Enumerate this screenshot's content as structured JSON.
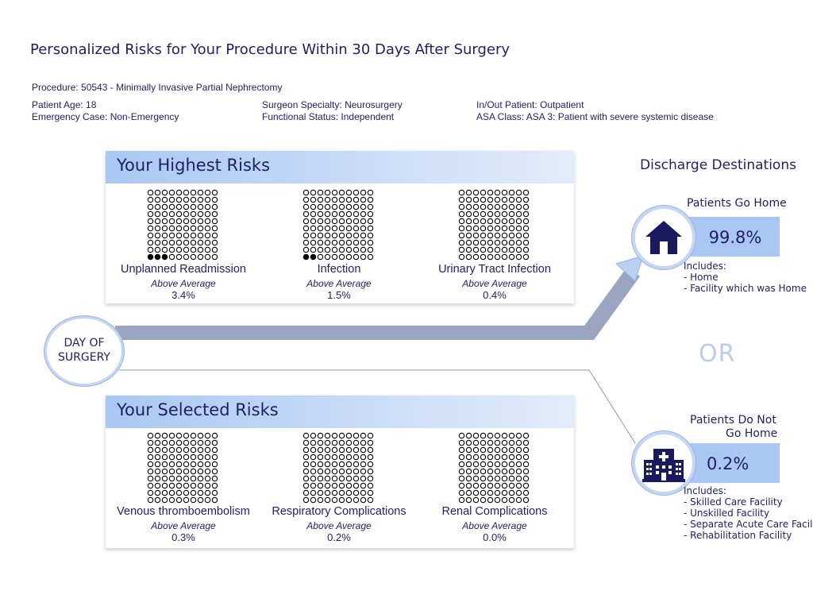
{
  "title": "Personalized Risks for Your Procedure Within 30 Days After Surgery",
  "procedure": "Procedure: 50543 - Minimally Invasive Partial Nephrectomy",
  "patient": {
    "age": "Patient Age: 18",
    "emergency": "Emergency Case: Non-Emergency",
    "specialty": "Surgeon Specialty: Neurosurgery",
    "functional": "Functional Status: Independent",
    "inout": "In/Out Patient: Outpatient",
    "asa": "ASA Class: ASA 3: Patient with severe systemic disease"
  },
  "highest_risks": {
    "heading": "Your Highest Risks",
    "items": [
      {
        "label": "Unplanned Readmission",
        "category": "Above Average",
        "value": "3.4%",
        "filled": 3
      },
      {
        "label": "Infection",
        "category": "Above Average",
        "value": "1.5%",
        "filled": 2
      },
      {
        "label": "Urinary Tract Infection",
        "category": "Above Average",
        "value": "0.4%",
        "filled": 0
      }
    ]
  },
  "selected_risks": {
    "heading": "Your Selected Risks",
    "items": [
      {
        "label": "Venous thromboembolism",
        "category": "Above Average",
        "value": "0.3%",
        "filled": 0
      },
      {
        "label": "Respiratory Complications",
        "category": "Above Average",
        "value": "0.2%",
        "filled": 0
      },
      {
        "label": "Renal Complications",
        "category": "Above Average",
        "value": "0.0%",
        "filled": 0
      }
    ]
  },
  "day_of_surgery": {
    "line1": "DAY OF",
    "line2": "SURGERY"
  },
  "discharge": {
    "heading": "Discharge Destinations",
    "or_label": "OR",
    "home": {
      "title": "Patients Go Home",
      "percent": "99.8%",
      "includes_label": "Includes:",
      "includes": [
        "- Home",
        "- Facility which was Home"
      ],
      "icon": "house-icon"
    },
    "not_home": {
      "title_line1": "Patients Do Not",
      "title_line2": "Go Home",
      "percent": "0.2%",
      "includes_label": "Includes:",
      "includes": [
        "- Skilled Care Facility",
        "- Unskilled Facility",
        "- Separate Acute Care Facil",
        "- Rehabilitation Facility"
      ],
      "icon": "hospital-icon"
    }
  },
  "colors": {
    "accent_dark": "#1f1f66",
    "panel_gradient_start": "#a9c8f2",
    "panel_gradient_end": "#e2ecfb",
    "path_arrow": "#9aa6c0",
    "dest_box": "#aac6f2"
  }
}
